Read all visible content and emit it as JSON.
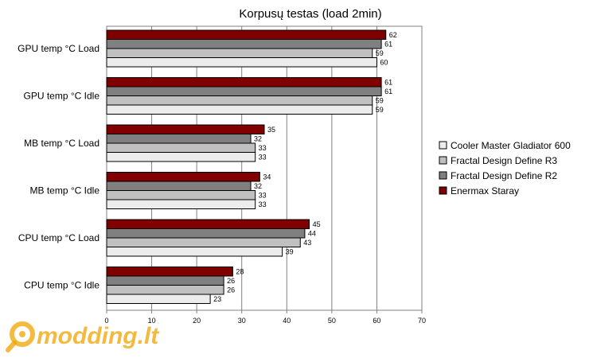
{
  "chart_data": {
    "type": "bar",
    "orientation": "horizontal",
    "title": "Korpusų testas (load 2min)",
    "categories": [
      "GPU temp °C Load",
      "GPU temp °C Idle",
      "MB temp °C Load",
      "MB temp °C Idle",
      "CPU temp °C Load",
      "CPU temp °C Idle"
    ],
    "series": [
      {
        "name": "Enermax Staray",
        "color": "#800000",
        "values": [
          62,
          61,
          35,
          34,
          45,
          28
        ]
      },
      {
        "name": "Fractal Design Define R2",
        "color": "#808080",
        "values": [
          61,
          61,
          32,
          32,
          44,
          26
        ]
      },
      {
        "name": "Fractal Design Define R3",
        "color": "#c0c0c0",
        "values": [
          59,
          59,
          33,
          33,
          43,
          26
        ]
      },
      {
        "name": "Cooler Master Gladiator 600",
        "color": "#ececec",
        "values": [
          60,
          59,
          33,
          33,
          39,
          23
        ]
      }
    ],
    "legend_order": [
      "Cooler Master Gladiator 600",
      "Fractal Design Define R3",
      "Fractal Design Define R2",
      "Enermax Staray"
    ],
    "xlim": [
      0,
      70
    ],
    "xticks": [
      0,
      10,
      20,
      30,
      40,
      50,
      60,
      70
    ],
    "grid": true,
    "legend_position": "right"
  },
  "watermark": {
    "text": "modding.lt",
    "icon": "magnifier-logo-icon",
    "color": "#f0a400"
  }
}
